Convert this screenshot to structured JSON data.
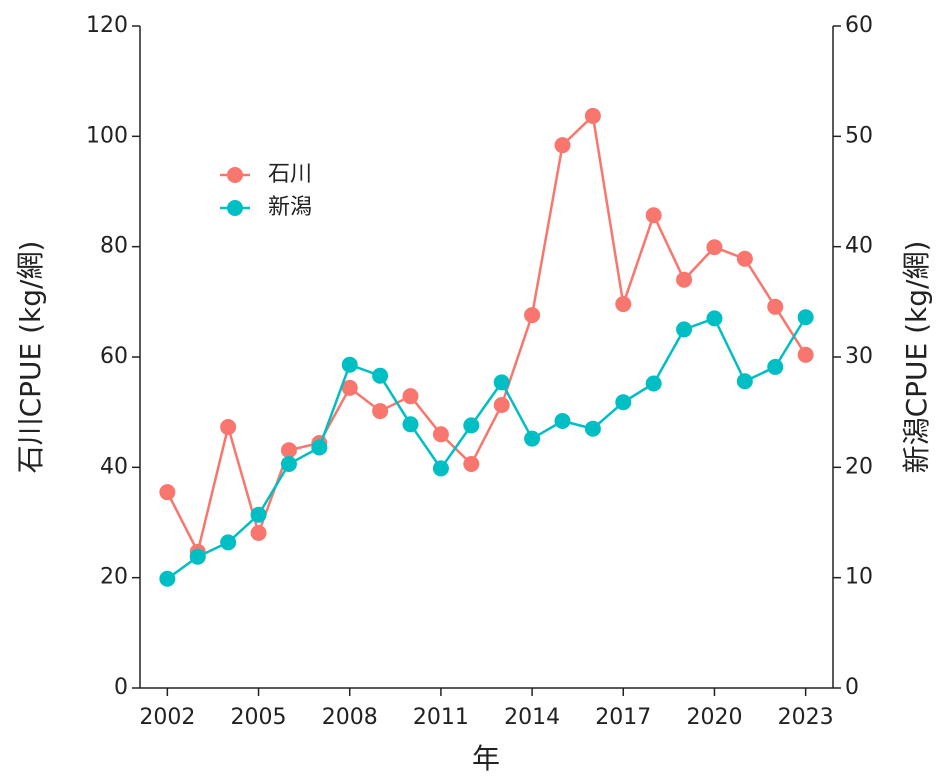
{
  "chart_data": {
    "type": "line",
    "xlabel": "年",
    "ylabel": "石川CPUE (kg/網)",
    "y2label": "新潟CPUE (kg/網)",
    "x": [
      2002,
      2003,
      2004,
      2005,
      2006,
      2007,
      2008,
      2009,
      2010,
      2011,
      2012,
      2013,
      2014,
      2015,
      2016,
      2017,
      2018,
      2019,
      2020,
      2021,
      2022,
      2023
    ],
    "series": [
      {
        "name": "石川",
        "color": "#F8766D",
        "axis": "y",
        "values": [
          35.5,
          24.7,
          47.3,
          28.1,
          43.1,
          44.4,
          54.4,
          50.2,
          52.9,
          46.0,
          40.6,
          51.3,
          67.6,
          98.4,
          103.7,
          69.6,
          85.7,
          74.0,
          79.9,
          77.8,
          69.1,
          60.4
        ]
      },
      {
        "name": "新潟",
        "color": "#00BFC4",
        "axis": "y2",
        "values": [
          9.9,
          11.9,
          13.2,
          15.7,
          20.3,
          21.8,
          29.3,
          28.3,
          23.9,
          19.9,
          23.8,
          27.7,
          22.6,
          24.2,
          23.5,
          25.9,
          27.6,
          32.5,
          33.5,
          27.8,
          29.1,
          33.6
        ]
      }
    ],
    "xlim": [
      2001.1,
      2023.9
    ],
    "xticks": [
      2002,
      2005,
      2008,
      2011,
      2014,
      2017,
      2020,
      2023
    ],
    "ylim": [
      0,
      120
    ],
    "yticks": [
      0,
      20,
      40,
      60,
      80,
      100,
      120
    ],
    "y2lim": [
      0,
      60
    ],
    "y2ticks": [
      0,
      10,
      20,
      30,
      40,
      50,
      60
    ],
    "legend": "upper left"
  }
}
